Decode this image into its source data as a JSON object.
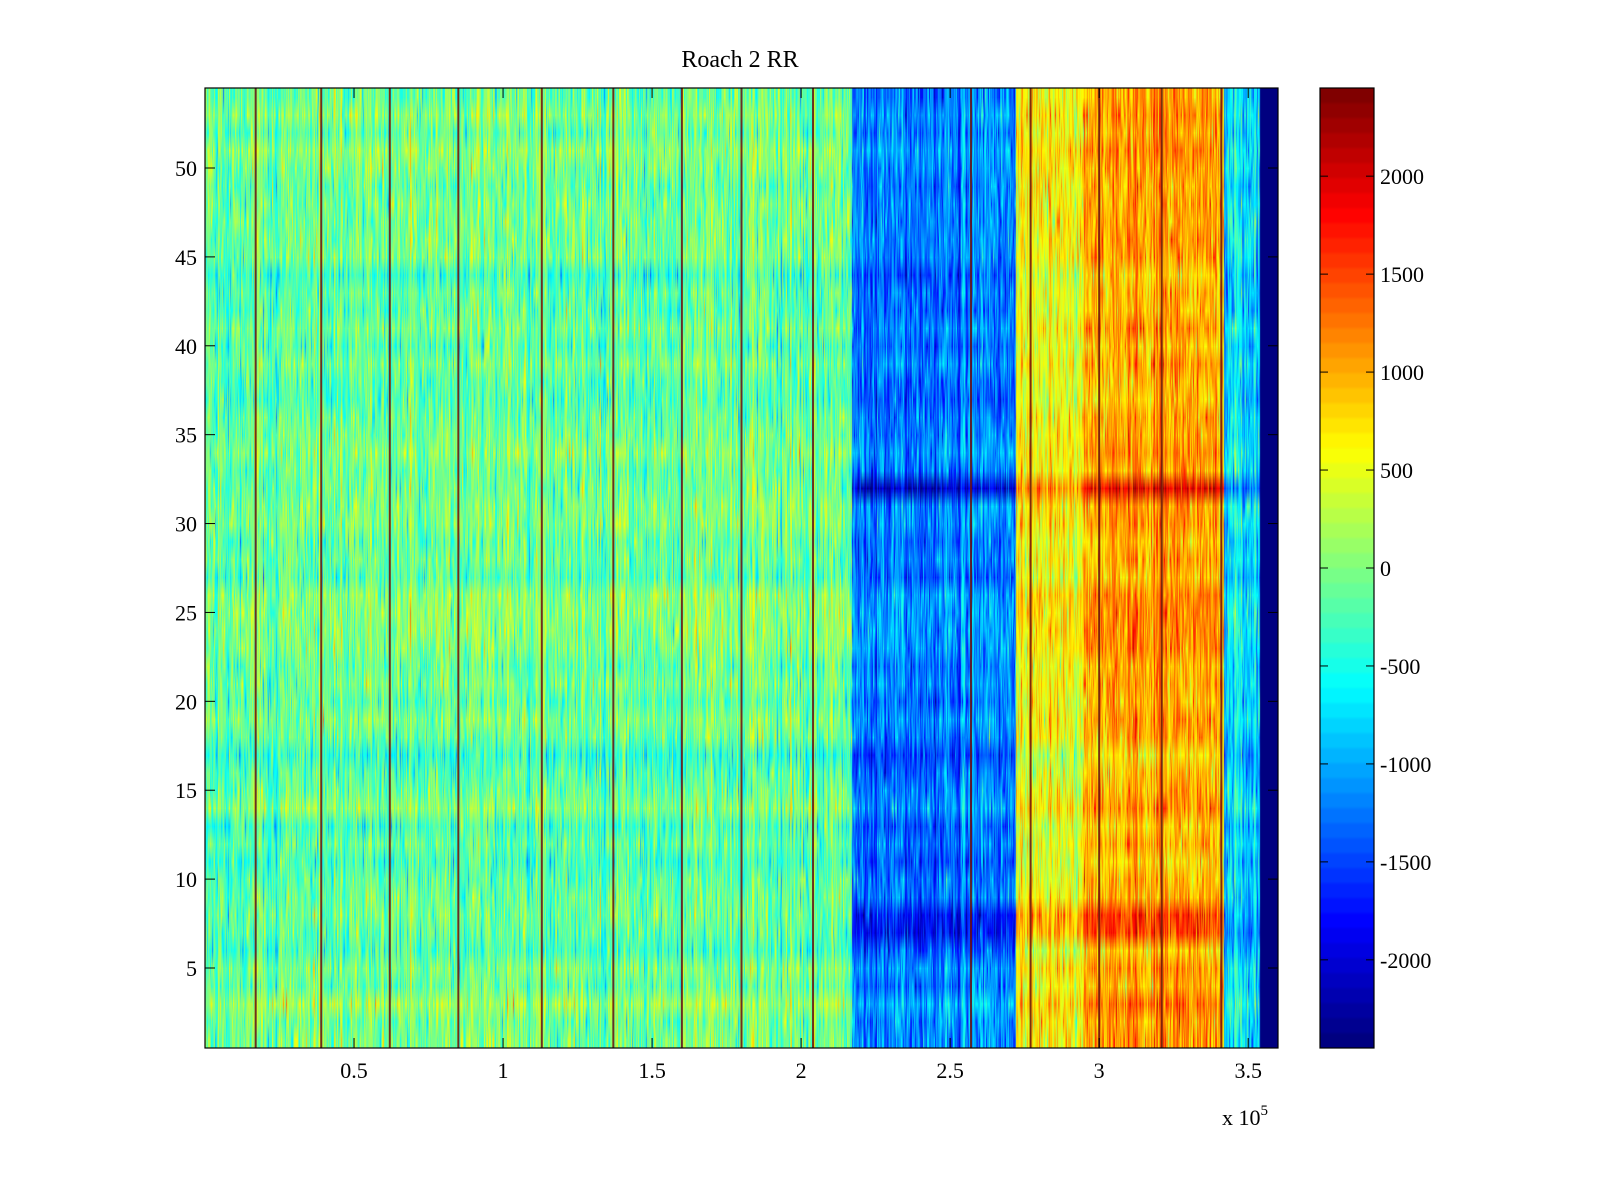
{
  "chart_data": {
    "type": "heatmap",
    "title": "Roach 2 RR",
    "xlabel": "",
    "ylabel": "",
    "x_multiplier_label": {
      "prefix": "x 10",
      "exponent": "5"
    },
    "xlim": [
      0,
      3.6
    ],
    "ylim": [
      0.5,
      54.5
    ],
    "rows": 54,
    "x_ticks": [
      {
        "value": 0.5,
        "label": "0.5"
      },
      {
        "value": 1,
        "label": "1"
      },
      {
        "value": 1.5,
        "label": "1.5"
      },
      {
        "value": 2,
        "label": "2"
      },
      {
        "value": 2.5,
        "label": "2.5"
      },
      {
        "value": 3,
        "label": "3"
      },
      {
        "value": 3.5,
        "label": "3.5"
      }
    ],
    "y_ticks": [
      {
        "value": 5,
        "label": "5"
      },
      {
        "value": 10,
        "label": "10"
      },
      {
        "value": 15,
        "label": "15"
      },
      {
        "value": 20,
        "label": "20"
      },
      {
        "value": 25,
        "label": "25"
      },
      {
        "value": 30,
        "label": "30"
      },
      {
        "value": 35,
        "label": "35"
      },
      {
        "value": 40,
        "label": "40"
      },
      {
        "value": 45,
        "label": "45"
      },
      {
        "value": 50,
        "label": "50"
      }
    ],
    "colorbar": {
      "colormap": "jet",
      "clim": [
        -2450,
        2450
      ],
      "ticks": [
        {
          "value": 2000,
          "label": "2000"
        },
        {
          "value": 1500,
          "label": "1500"
        },
        {
          "value": 1000,
          "label": "1000"
        },
        {
          "value": 500,
          "label": "500"
        },
        {
          "value": 0,
          "label": "0"
        },
        {
          "value": -500,
          "label": "-500"
        },
        {
          "value": -1000,
          "label": "-1000"
        },
        {
          "value": -1500,
          "label": "-1500"
        },
        {
          "value": -2000,
          "label": "-2000"
        }
      ]
    },
    "x_segments": [
      {
        "x0": 0.0,
        "x1": 2.17,
        "mean": -100
      },
      {
        "x0": 2.17,
        "x1": 2.72,
        "mean": -1200
      },
      {
        "x0": 2.72,
        "x1": 2.95,
        "mean": 600
      },
      {
        "x0": 2.95,
        "x1": 3.42,
        "mean": 1000
      },
      {
        "x0": 3.42,
        "x1": 3.54,
        "mean": -700
      },
      {
        "x0": 3.54,
        "x1": 3.6,
        "mean": -2400
      }
    ],
    "row_offsets": [
      {
        "row": 32,
        "scale": 1.8
      },
      {
        "row": 7,
        "scale": 1.5
      },
      {
        "row": 8,
        "scale": 1.5
      }
    ],
    "dark_vertical_lines_x": [
      0.17,
      0.39,
      0.62,
      0.85,
      1.13,
      1.37,
      1.6,
      1.8,
      2.04,
      2.57,
      2.77,
      3.0,
      3.21,
      3.41
    ]
  }
}
